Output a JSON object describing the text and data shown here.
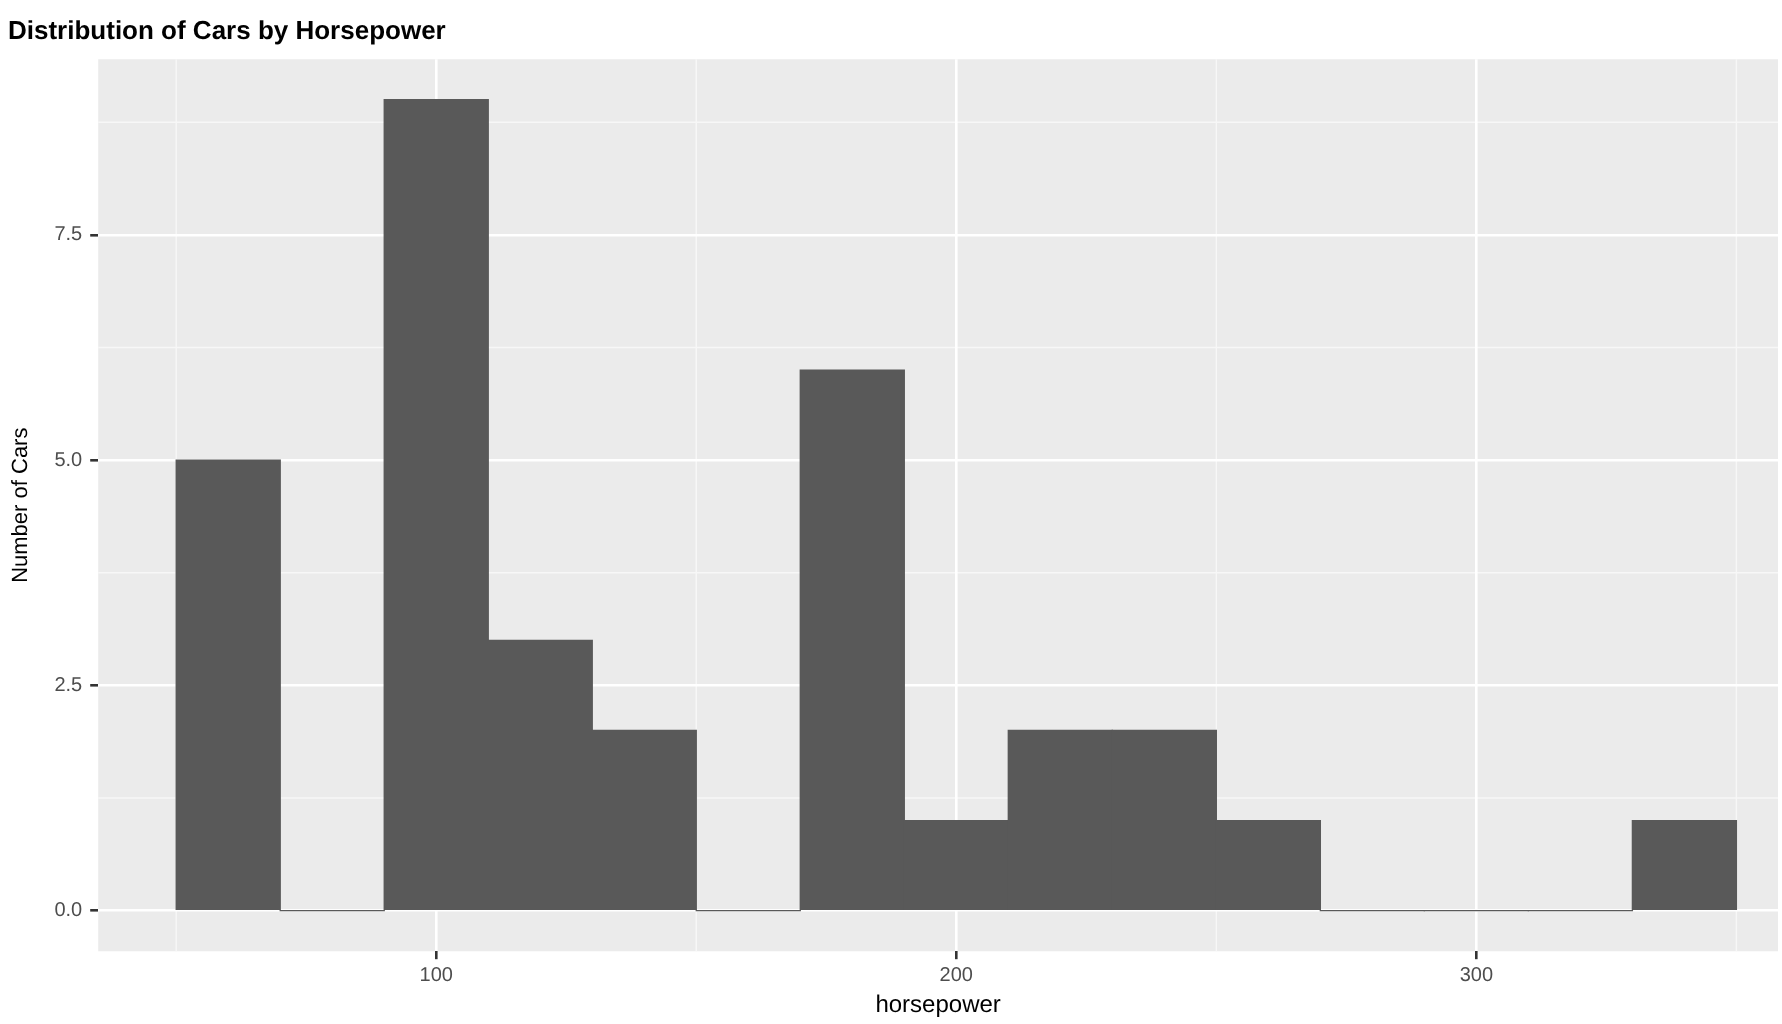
{
  "chart_data": {
    "type": "histogram",
    "title": "Distribution of Cars by Horsepower",
    "xlabel": "horsepower",
    "ylabel": "Number of Cars",
    "bins": [
      50,
      70,
      90,
      110,
      130,
      150,
      170,
      190,
      210,
      230,
      250,
      270,
      290,
      310,
      330,
      350
    ],
    "values": [
      5,
      0,
      9,
      3,
      2,
      0,
      6,
      1,
      2,
      2,
      1,
      0,
      0,
      0,
      1
    ],
    "color": "#595959",
    "xlim": [
      35,
      358
    ],
    "xticks": [
      100,
      200,
      300
    ],
    "ylim": [
      -0.45,
      9.45
    ],
    "yticks": [
      {
        "value": 0,
        "label": "0.0"
      },
      {
        "value": 2.5,
        "label": "2.5"
      },
      {
        "value": 5,
        "label": "5.0"
      },
      {
        "value": 7.5,
        "label": "7.5"
      }
    ],
    "grid": true,
    "legend": false
  }
}
